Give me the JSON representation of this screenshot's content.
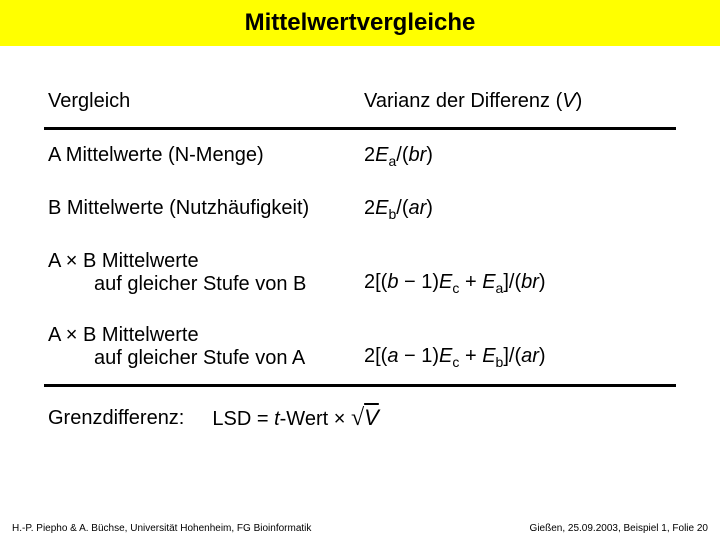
{
  "title": "Mittelwertvergleiche",
  "table": {
    "header_left": "Vergleich",
    "header_right_prefix": "Varianz der Differenz (",
    "header_right_var": "V",
    "header_right_suffix": ")",
    "rows": [
      {
        "left": "A Mittelwerte (N-Menge)",
        "indent": "",
        "r_prefix": "2",
        "r_E": "E",
        "r_sub": "a",
        "r_mid": "/(",
        "r_var": "br",
        "r_suffix": ")"
      },
      {
        "left": "B Mittelwerte (Nutzhäufigkeit)",
        "indent": "",
        "r_prefix": "2",
        "r_E": "E",
        "r_sub": "b",
        "r_mid": "/(",
        "r_var": "ar",
        "r_suffix": ")"
      },
      {
        "left": "A × B Mittelwerte",
        "indent": "auf gleicher Stufe von B",
        "r_prefix": "2[(",
        "r_b": "b",
        "r_minus": " − 1)",
        "r_E1": "E",
        "r_sub1": "c",
        "r_plus": " + ",
        "r_E2": "E",
        "r_sub2": "a",
        "r_close": "]/(",
        "r_var": "br",
        "r_suffix": ")"
      },
      {
        "left": "A × B Mittelwerte",
        "indent": "auf gleicher Stufe von A",
        "r_prefix": "2[(",
        "r_b": "a",
        "r_minus": " − 1)",
        "r_E1": "E",
        "r_sub1": "c",
        "r_plus": " + ",
        "r_E2": "E",
        "r_sub2": "b",
        "r_close": "]/(",
        "r_var": "ar",
        "r_suffix": ")"
      }
    ]
  },
  "grenz": {
    "label": "Grenzdifferenz:",
    "formula_prefix": "LSD = ",
    "t": "t",
    "wert": "-Wert × ",
    "sqrt": "√",
    "V": "V"
  },
  "footer": {
    "left": "H.-P. Piepho & A. Büchse, Universität Hohenheim, FG Bioinformatik",
    "right": "Gießen, 25.09.2003, Beispiel 1, Folie 20"
  },
  "colors": {
    "title_bg": "#ffff00",
    "text": "#000000",
    "bg": "#ffffff"
  }
}
